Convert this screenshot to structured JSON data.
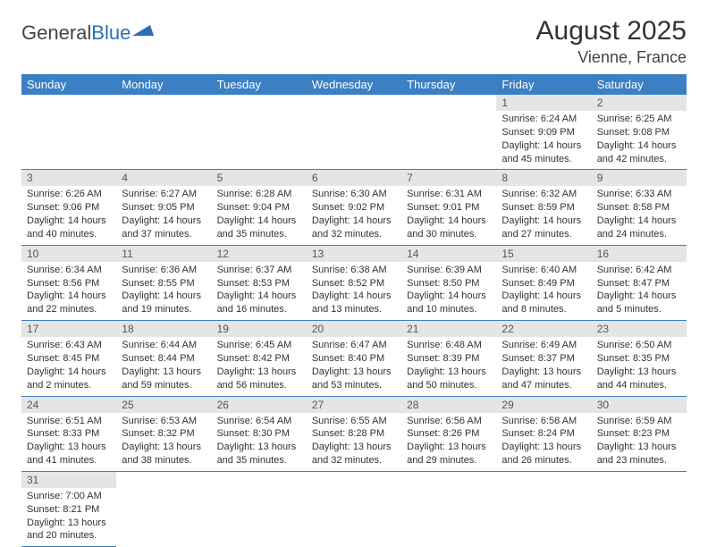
{
  "logo": {
    "text1": "General",
    "text2": "Blue",
    "shape_color": "#2d6fb6"
  },
  "title": "August 2025",
  "location": "Vienne, France",
  "header_bg": "#3b7fc4",
  "header_text_color": "#ffffff",
  "daynum_bg": "#e5e5e5",
  "divider_color": "#3b7fc4",
  "weekdays": [
    "Sunday",
    "Monday",
    "Tuesday",
    "Wednesday",
    "Thursday",
    "Friday",
    "Saturday"
  ],
  "weeks": [
    [
      null,
      null,
      null,
      null,
      null,
      {
        "n": "1",
        "sr": "Sunrise: 6:24 AM",
        "ss": "Sunset: 9:09 PM",
        "dl": "Daylight: 14 hours and 45 minutes."
      },
      {
        "n": "2",
        "sr": "Sunrise: 6:25 AM",
        "ss": "Sunset: 9:08 PM",
        "dl": "Daylight: 14 hours and 42 minutes."
      }
    ],
    [
      {
        "n": "3",
        "sr": "Sunrise: 6:26 AM",
        "ss": "Sunset: 9:06 PM",
        "dl": "Daylight: 14 hours and 40 minutes."
      },
      {
        "n": "4",
        "sr": "Sunrise: 6:27 AM",
        "ss": "Sunset: 9:05 PM",
        "dl": "Daylight: 14 hours and 37 minutes."
      },
      {
        "n": "5",
        "sr": "Sunrise: 6:28 AM",
        "ss": "Sunset: 9:04 PM",
        "dl": "Daylight: 14 hours and 35 minutes."
      },
      {
        "n": "6",
        "sr": "Sunrise: 6:30 AM",
        "ss": "Sunset: 9:02 PM",
        "dl": "Daylight: 14 hours and 32 minutes."
      },
      {
        "n": "7",
        "sr": "Sunrise: 6:31 AM",
        "ss": "Sunset: 9:01 PM",
        "dl": "Daylight: 14 hours and 30 minutes."
      },
      {
        "n": "8",
        "sr": "Sunrise: 6:32 AM",
        "ss": "Sunset: 8:59 PM",
        "dl": "Daylight: 14 hours and 27 minutes."
      },
      {
        "n": "9",
        "sr": "Sunrise: 6:33 AM",
        "ss": "Sunset: 8:58 PM",
        "dl": "Daylight: 14 hours and 24 minutes."
      }
    ],
    [
      {
        "n": "10",
        "sr": "Sunrise: 6:34 AM",
        "ss": "Sunset: 8:56 PM",
        "dl": "Daylight: 14 hours and 22 minutes."
      },
      {
        "n": "11",
        "sr": "Sunrise: 6:36 AM",
        "ss": "Sunset: 8:55 PM",
        "dl": "Daylight: 14 hours and 19 minutes."
      },
      {
        "n": "12",
        "sr": "Sunrise: 6:37 AM",
        "ss": "Sunset: 8:53 PM",
        "dl": "Daylight: 14 hours and 16 minutes."
      },
      {
        "n": "13",
        "sr": "Sunrise: 6:38 AM",
        "ss": "Sunset: 8:52 PM",
        "dl": "Daylight: 14 hours and 13 minutes."
      },
      {
        "n": "14",
        "sr": "Sunrise: 6:39 AM",
        "ss": "Sunset: 8:50 PM",
        "dl": "Daylight: 14 hours and 10 minutes."
      },
      {
        "n": "15",
        "sr": "Sunrise: 6:40 AM",
        "ss": "Sunset: 8:49 PM",
        "dl": "Daylight: 14 hours and 8 minutes."
      },
      {
        "n": "16",
        "sr": "Sunrise: 6:42 AM",
        "ss": "Sunset: 8:47 PM",
        "dl": "Daylight: 14 hours and 5 minutes."
      }
    ],
    [
      {
        "n": "17",
        "sr": "Sunrise: 6:43 AM",
        "ss": "Sunset: 8:45 PM",
        "dl": "Daylight: 14 hours and 2 minutes."
      },
      {
        "n": "18",
        "sr": "Sunrise: 6:44 AM",
        "ss": "Sunset: 8:44 PM",
        "dl": "Daylight: 13 hours and 59 minutes."
      },
      {
        "n": "19",
        "sr": "Sunrise: 6:45 AM",
        "ss": "Sunset: 8:42 PM",
        "dl": "Daylight: 13 hours and 56 minutes."
      },
      {
        "n": "20",
        "sr": "Sunrise: 6:47 AM",
        "ss": "Sunset: 8:40 PM",
        "dl": "Daylight: 13 hours and 53 minutes."
      },
      {
        "n": "21",
        "sr": "Sunrise: 6:48 AM",
        "ss": "Sunset: 8:39 PM",
        "dl": "Daylight: 13 hours and 50 minutes."
      },
      {
        "n": "22",
        "sr": "Sunrise: 6:49 AM",
        "ss": "Sunset: 8:37 PM",
        "dl": "Daylight: 13 hours and 47 minutes."
      },
      {
        "n": "23",
        "sr": "Sunrise: 6:50 AM",
        "ss": "Sunset: 8:35 PM",
        "dl": "Daylight: 13 hours and 44 minutes."
      }
    ],
    [
      {
        "n": "24",
        "sr": "Sunrise: 6:51 AM",
        "ss": "Sunset: 8:33 PM",
        "dl": "Daylight: 13 hours and 41 minutes."
      },
      {
        "n": "25",
        "sr": "Sunrise: 6:53 AM",
        "ss": "Sunset: 8:32 PM",
        "dl": "Daylight: 13 hours and 38 minutes."
      },
      {
        "n": "26",
        "sr": "Sunrise: 6:54 AM",
        "ss": "Sunset: 8:30 PM",
        "dl": "Daylight: 13 hours and 35 minutes."
      },
      {
        "n": "27",
        "sr": "Sunrise: 6:55 AM",
        "ss": "Sunset: 8:28 PM",
        "dl": "Daylight: 13 hours and 32 minutes."
      },
      {
        "n": "28",
        "sr": "Sunrise: 6:56 AM",
        "ss": "Sunset: 8:26 PM",
        "dl": "Daylight: 13 hours and 29 minutes."
      },
      {
        "n": "29",
        "sr": "Sunrise: 6:58 AM",
        "ss": "Sunset: 8:24 PM",
        "dl": "Daylight: 13 hours and 26 minutes."
      },
      {
        "n": "30",
        "sr": "Sunrise: 6:59 AM",
        "ss": "Sunset: 8:23 PM",
        "dl": "Daylight: 13 hours and 23 minutes."
      }
    ],
    [
      {
        "n": "31",
        "sr": "Sunrise: 7:00 AM",
        "ss": "Sunset: 8:21 PM",
        "dl": "Daylight: 13 hours and 20 minutes."
      },
      null,
      null,
      null,
      null,
      null,
      null
    ]
  ]
}
